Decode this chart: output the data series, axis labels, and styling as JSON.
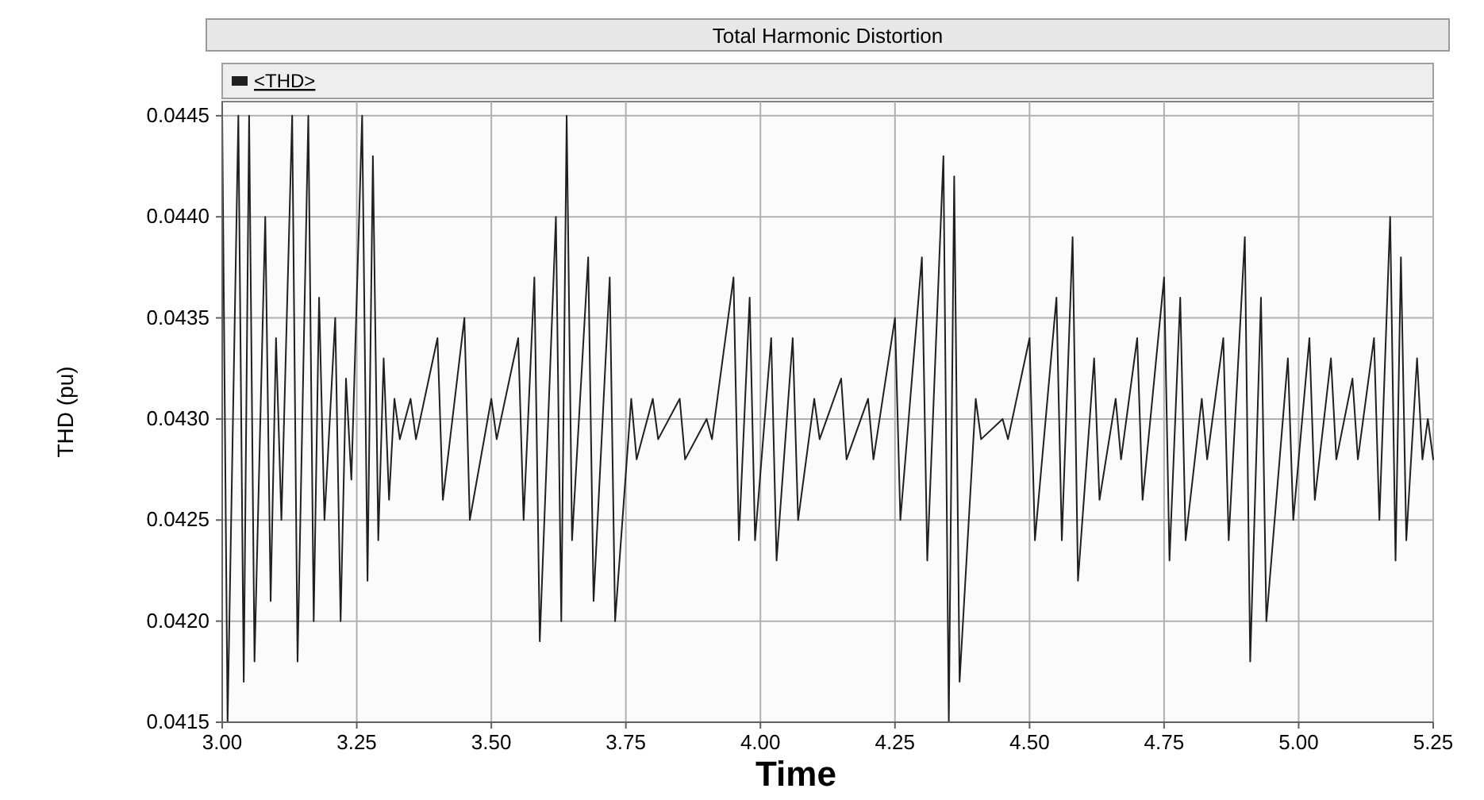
{
  "chart_data": {
    "type": "line",
    "title": "Total Harmonic Distortion",
    "xlabel": "Time",
    "ylabel": "THD (pu)",
    "xlim": [
      3.0,
      5.25
    ],
    "xticks": [
      {
        "value": 3.0,
        "label": "3.00"
      },
      {
        "value": 3.25,
        "label": "3.25"
      },
      {
        "value": 3.5,
        "label": "3.50"
      },
      {
        "value": 3.75,
        "label": "3.75"
      },
      {
        "value": 4.0,
        "label": "4.00"
      },
      {
        "value": 4.25,
        "label": "4.25"
      },
      {
        "value": 4.5,
        "label": "4.50"
      },
      {
        "value": 4.75,
        "label": "4.75"
      },
      {
        "value": 5.0,
        "label": "5.00"
      },
      {
        "value": 5.25,
        "label": "5.25"
      }
    ],
    "ylim": [
      0.0415,
      0.04457
    ],
    "yticks": [
      {
        "value": 0.0415,
        "label": "0.0415"
      },
      {
        "value": 0.042,
        "label": "0.0420"
      },
      {
        "value": 0.0425,
        "label": "0.0425"
      },
      {
        "value": 0.043,
        "label": "0.0430"
      },
      {
        "value": 0.0435,
        "label": "0.0435"
      },
      {
        "value": 0.044,
        "label": "0.0440"
      },
      {
        "value": 0.0445,
        "label": "0.0445"
      }
    ],
    "grid": true,
    "legend": "top left",
    "marker": "none",
    "line_style": "solid",
    "series": [
      {
        "name": "<THD>",
        "color": "#202020",
        "x": [
          3.0,
          3.01,
          3.03,
          3.04,
          3.05,
          3.06,
          3.08,
          3.09,
          3.1,
          3.11,
          3.13,
          3.14,
          3.16,
          3.17,
          3.18,
          3.19,
          3.21,
          3.22,
          3.23,
          3.24,
          3.26,
          3.27,
          3.28,
          3.29,
          3.3,
          3.31,
          3.32,
          3.33,
          3.35,
          3.36,
          3.4,
          3.41,
          3.45,
          3.46,
          3.5,
          3.51,
          3.55,
          3.56,
          3.58,
          3.59,
          3.62,
          3.63,
          3.64,
          3.65,
          3.68,
          3.69,
          3.72,
          3.73,
          3.76,
          3.77,
          3.8,
          3.81,
          3.85,
          3.86,
          3.9,
          3.91,
          3.95,
          3.96,
          3.98,
          3.99,
          4.02,
          4.03,
          4.06,
          4.07,
          4.1,
          4.11,
          4.15,
          4.16,
          4.2,
          4.21,
          4.25,
          4.26,
          4.3,
          4.31,
          4.34,
          4.35,
          4.36,
          4.37,
          4.4,
          4.41,
          4.45,
          4.46,
          4.5,
          4.51,
          4.55,
          4.56,
          4.58,
          4.59,
          4.62,
          4.63,
          4.66,
          4.67,
          4.7,
          4.71,
          4.75,
          4.76,
          4.78,
          4.79,
          4.82,
          4.83,
          4.86,
          4.87,
          4.9,
          4.91,
          4.93,
          4.94,
          4.98,
          4.99,
          5.02,
          5.03,
          5.06,
          5.07,
          5.1,
          5.11,
          5.14,
          5.15,
          5.17,
          5.18,
          5.19,
          5.2,
          5.22,
          5.23,
          5.24,
          5.25
        ],
        "values": [
          0.0445,
          0.0415,
          0.0445,
          0.0417,
          0.0445,
          0.0418,
          0.044,
          0.0421,
          0.0434,
          0.0425,
          0.0445,
          0.0418,
          0.0445,
          0.042,
          0.0436,
          0.0425,
          0.0435,
          0.042,
          0.0432,
          0.0427,
          0.0445,
          0.0422,
          0.0443,
          0.0424,
          0.0433,
          0.0426,
          0.0431,
          0.0429,
          0.0431,
          0.0429,
          0.0434,
          0.0426,
          0.0435,
          0.0425,
          0.0431,
          0.0429,
          0.0434,
          0.0425,
          0.0437,
          0.0419,
          0.044,
          0.042,
          0.0445,
          0.0424,
          0.0438,
          0.0421,
          0.0437,
          0.042,
          0.0431,
          0.0428,
          0.0431,
          0.0429,
          0.0431,
          0.0428,
          0.043,
          0.0429,
          0.0437,
          0.0424,
          0.0436,
          0.0424,
          0.0434,
          0.0423,
          0.0434,
          0.0425,
          0.0431,
          0.0429,
          0.0432,
          0.0428,
          0.0431,
          0.0428,
          0.0435,
          0.0425,
          0.0438,
          0.0423,
          0.0443,
          0.0415,
          0.0442,
          0.0417,
          0.0431,
          0.0429,
          0.043,
          0.0429,
          0.0434,
          0.0424,
          0.0436,
          0.0424,
          0.0439,
          0.0422,
          0.0433,
          0.0426,
          0.0431,
          0.0428,
          0.0434,
          0.0426,
          0.0437,
          0.0423,
          0.0436,
          0.0424,
          0.0431,
          0.0428,
          0.0434,
          0.0424,
          0.0439,
          0.0418,
          0.0436,
          0.042,
          0.0433,
          0.0425,
          0.0434,
          0.0426,
          0.0433,
          0.0428,
          0.0432,
          0.0428,
          0.0434,
          0.0425,
          0.044,
          0.0423,
          0.0438,
          0.0424,
          0.0433,
          0.0428,
          0.043,
          0.0428
        ]
      }
    ]
  }
}
